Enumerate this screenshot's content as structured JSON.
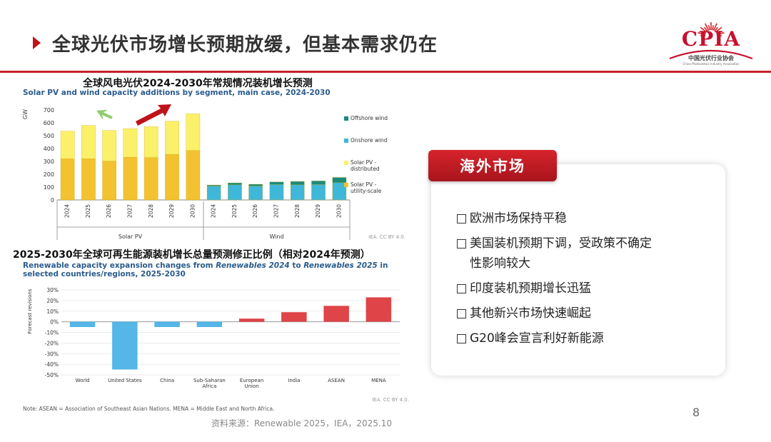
{
  "header": {
    "title": "全球光伏市场增长预期放缓，但基本需求仍在"
  },
  "logo": {
    "text": "CPIA",
    "cn_name": "中国光伏行业协会",
    "en_name": "China Photovoltaic Industry Association",
    "color": "#c8102e"
  },
  "colors": {
    "accent": "#c8202a",
    "utility": "#f2c230",
    "distributed": "#fbf06a",
    "onshore": "#3fb7d9",
    "offshore": "#1b8a7a",
    "neg_bar": "#55b6e8",
    "pos_bar": "#de4448"
  },
  "chart_data": [
    {
      "type": "bar",
      "stacked": true,
      "title": "全球风电光伏2024-2030年常规情况装机增长预测",
      "subtitle": "Solar PV and wind capacity additions by segment, main case, 2024-2030",
      "ylabel": "GW",
      "ylim": [
        0,
        700
      ],
      "yticks": [
        0,
        100,
        200,
        300,
        400,
        500,
        600,
        700
      ],
      "grid": false,
      "legend_position": "right",
      "groups": [
        {
          "name": "Solar PV",
          "categories": [
            "2024",
            "2025",
            "2026",
            "2027",
            "2028",
            "2029",
            "2030"
          ],
          "series": [
            {
              "name": "Solar PV - utility-scale",
              "values": [
                320,
                320,
                302,
                333,
                330,
                355,
                385
              ]
            },
            {
              "name": "Solar PV - distributed",
              "values": [
                215,
                260,
                238,
                222,
                240,
                257,
                285
              ]
            }
          ]
        },
        {
          "name": "Wind",
          "categories": [
            "2024",
            "2025",
            "2026",
            "2027",
            "2028",
            "2029",
            "2030"
          ],
          "series": [
            {
              "name": "Onshore wind",
              "values": [
                108,
                118,
                108,
                120,
                118,
                120,
                135
              ]
            },
            {
              "name": "Offshore wind",
              "values": [
                8,
                15,
                14,
                20,
                26,
                28,
                40
              ]
            }
          ]
        }
      ],
      "legend": [
        "Offshore wind",
        "Onshore wind",
        "Solar PV - distributed",
        "Solar PV - utility-scale"
      ],
      "credit": "IEA. CC BY 4.0."
    },
    {
      "type": "bar",
      "title": "2025-2030年全球可再生能源装机增长总量预测修正比例（相对2024年预测）",
      "subtitle_parts": [
        "Renewable capacity expansion changes from ",
        "Renewables 2024",
        " to ",
        "Renewables 2025",
        " in",
        "selected countries/regions, 2025-2030"
      ],
      "ylabel": "Forecast revisions",
      "ylim": [
        -50,
        30
      ],
      "yticks": [
        "30%",
        "20%",
        "10%",
        "0%",
        "-10%",
        "-20%",
        "-30%",
        "-40%",
        "-50%"
      ],
      "ytick_values": [
        30,
        20,
        10,
        0,
        -10,
        -20,
        -30,
        -40,
        -50
      ],
      "categories": [
        "World",
        "United States",
        "China",
        "Sub-Saharan Africa",
        "European Union",
        "India",
        "ASEAN",
        "MENA"
      ],
      "category_lines": [
        [
          "World"
        ],
        [
          "United States"
        ],
        [
          "China"
        ],
        [
          "Sub-Saharan",
          "Africa"
        ],
        [
          "European",
          "Union"
        ],
        [
          "India"
        ],
        [
          "ASEAN"
        ],
        [
          "MENA"
        ]
      ],
      "values": [
        -5,
        -45,
        -5,
        -5,
        3,
        9,
        15,
        23
      ],
      "grid": true,
      "credit": "IEA. CC BY 4.0."
    }
  ],
  "note": "Note: ASEAN = Association of Southeast Asian Nations. MENA = Middle East and North Africa.",
  "source": "资料来源：Renewable 2025，IEA，2025.10",
  "page_number": "8",
  "overseas": {
    "tag": "海外市场",
    "items": [
      "欧洲市场保持平稳",
      "美国装机预期下调，受政策不确定性影响较大",
      "印度装机预期增长迅猛",
      "其他新兴市场快速崛起",
      "G20峰会宣言利好新能源"
    ],
    "item2_lines": [
      "美国装机预期下调，受政策不确定",
      "性影响较大"
    ]
  }
}
